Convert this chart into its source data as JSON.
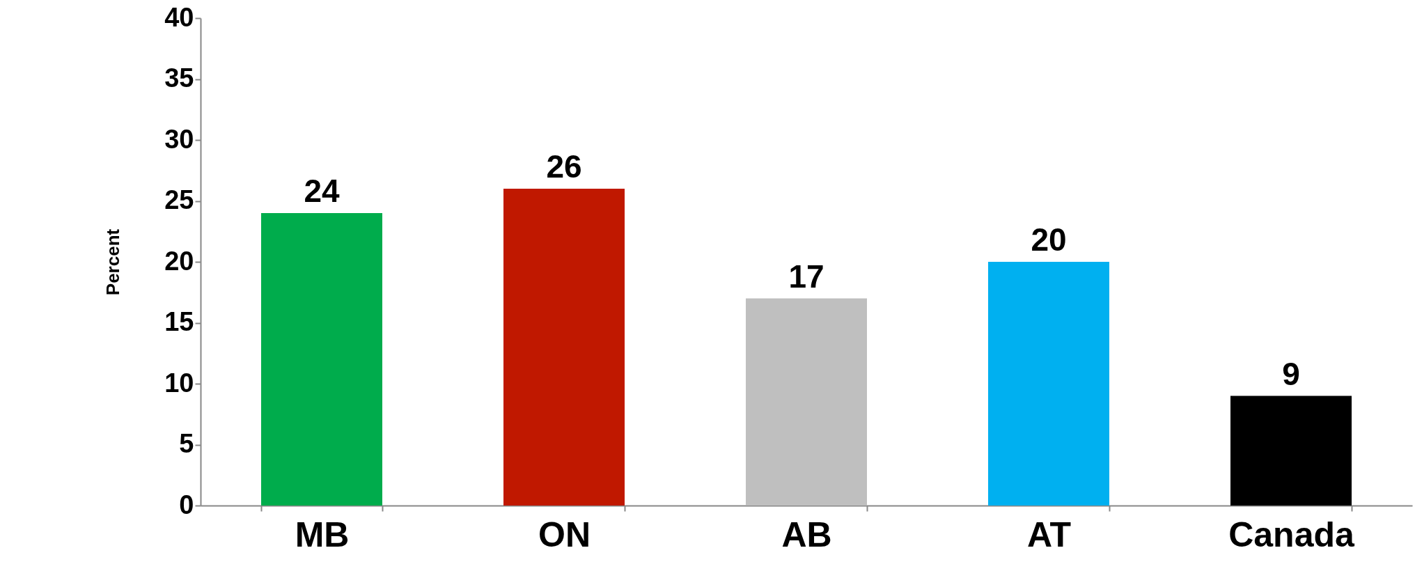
{
  "chart_data": {
    "type": "bar",
    "ylabel": "Percent",
    "categories": [
      "MB",
      "ON",
      "AB",
      "AT",
      "Canada"
    ],
    "values": [
      24,
      26,
      17,
      20,
      9
    ],
    "colors": [
      "#00ac4c",
      "#c01800",
      "#bfbfbf",
      "#00b0f0",
      "#000000"
    ],
    "ylim": [
      0,
      40
    ],
    "yticks": [
      0,
      5,
      10,
      15,
      20,
      25,
      30,
      35,
      40
    ],
    "data_labels": true,
    "grid": false
  }
}
